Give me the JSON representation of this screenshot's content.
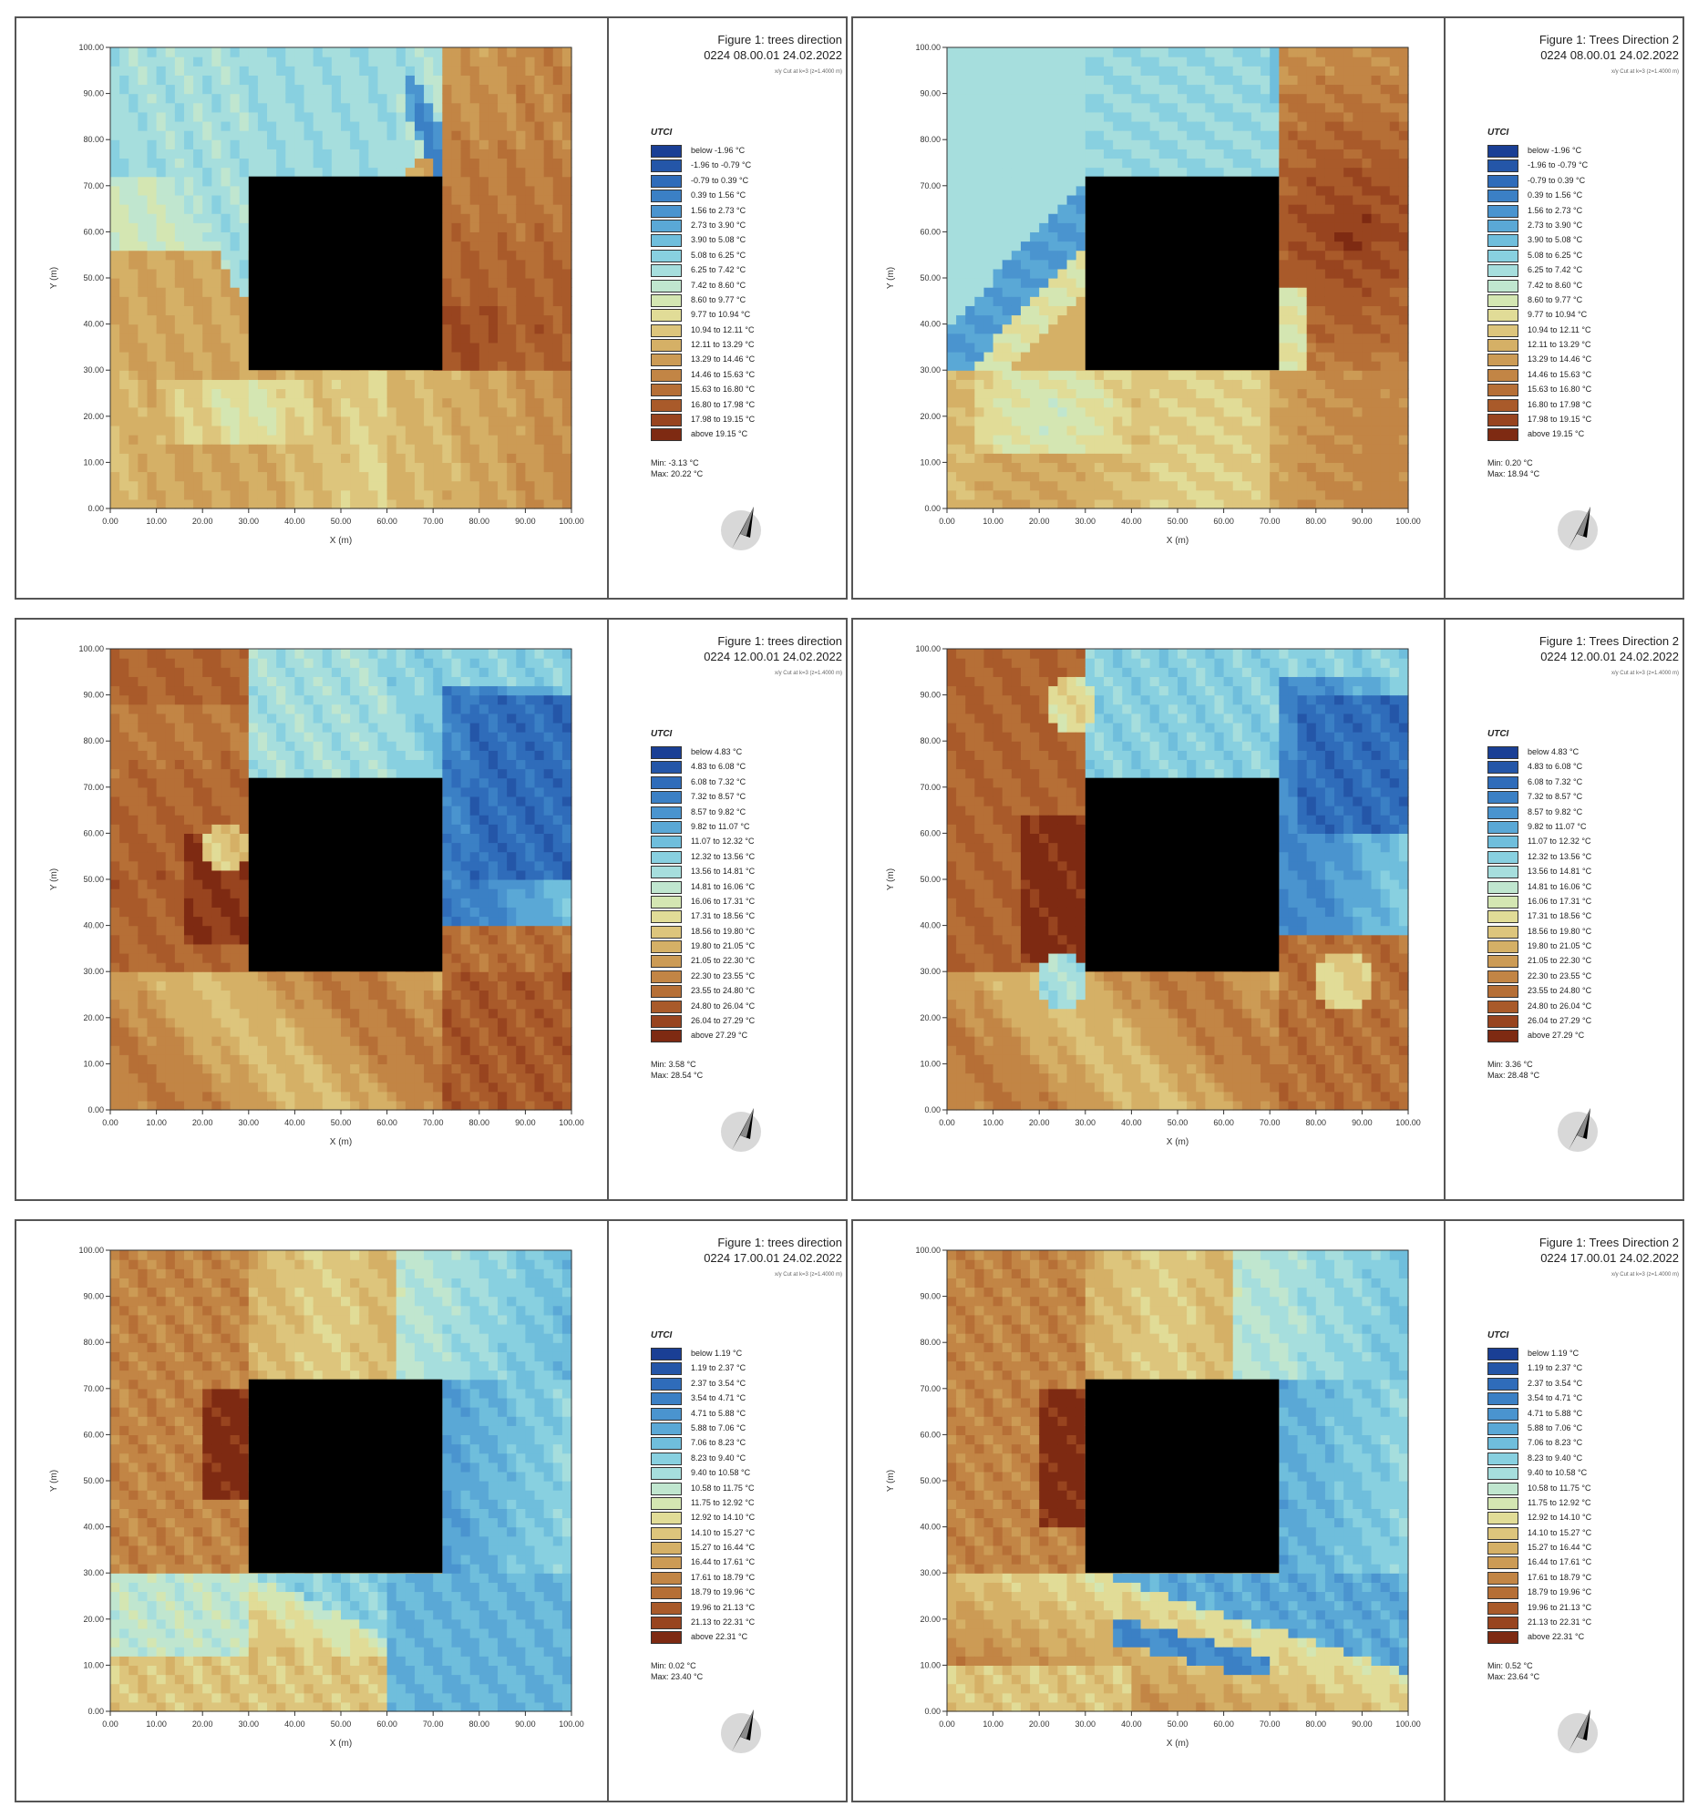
{
  "chart_data": [
    {
      "type": "heatmap",
      "title": "Figure 1: trees direction",
      "subtitle": "0224 08.00.01 24.02.2022",
      "note": "x/y Cut at k=3 (z=1.4000 m)",
      "xlabel": "X (m)",
      "ylabel": "Y (m)",
      "xlim": [
        0,
        100
      ],
      "ylim": [
        0,
        100
      ],
      "xticks": [
        "0.00",
        "10.00",
        "20.00",
        "30.00",
        "40.00",
        "50.00",
        "60.00",
        "70.00",
        "80.00",
        "90.00",
        "100.00"
      ],
      "yticks": [
        "0.00",
        "10.00",
        "20.00",
        "30.00",
        "40.00",
        "50.00",
        "60.00",
        "70.00",
        "80.00",
        "90.00",
        "100.00"
      ],
      "variable": "UTCI",
      "legend": [
        "below -1.96 °C",
        "-1.96 to -0.79 °C",
        "-0.79 to 0.39 °C",
        "0.39 to 1.56 °C",
        "1.56 to 2.73 °C",
        "2.73 to 3.90 °C",
        "3.90 to 5.08 °C",
        "5.08 to 6.25 °C",
        "6.25 to 7.42 °C",
        "7.42 to 8.60 °C",
        "8.60 to 9.77 °C",
        "9.77 to 10.94 °C",
        "10.94 to 12.11 °C",
        "12.11 to 13.29 °C",
        "13.29 to 14.46 °C",
        "14.46 to 15.63 °C",
        "15.63 to 16.80 °C",
        "16.80 to 17.98 °C",
        "17.98 to 19.15 °C",
        "above 19.15 °C"
      ],
      "min_label": "Min: -3.13 °C",
      "max_label": "Max: 20.22 °C",
      "building": {
        "x": [
          30,
          72
        ],
        "y": [
          30,
          72
        ]
      },
      "pattern": "p1"
    },
    {
      "type": "heatmap",
      "title": "Figure 1: Trees Direction 2",
      "subtitle": "0224 08.00.01 24.02.2022",
      "note": "x/y Cut at k=3 (z=1.4000 m)",
      "xlabel": "X (m)",
      "ylabel": "Y (m)",
      "xlim": [
        0,
        100
      ],
      "ylim": [
        0,
        100
      ],
      "xticks": [
        "0.00",
        "10.00",
        "20.00",
        "30.00",
        "40.00",
        "50.00",
        "60.00",
        "70.00",
        "80.00",
        "90.00",
        "100.00"
      ],
      "yticks": [
        "0.00",
        "10.00",
        "20.00",
        "30.00",
        "40.00",
        "50.00",
        "60.00",
        "70.00",
        "80.00",
        "90.00",
        "100.00"
      ],
      "variable": "UTCI",
      "legend": [
        "below -1.96 °C",
        "-1.96 to -0.79 °C",
        "-0.79 to 0.39 °C",
        "0.39 to 1.56 °C",
        "1.56 to 2.73 °C",
        "2.73 to 3.90 °C",
        "3.90 to 5.08 °C",
        "5.08 to 6.25 °C",
        "6.25 to 7.42 °C",
        "7.42 to 8.60 °C",
        "8.60 to 9.77 °C",
        "9.77 to 10.94 °C",
        "10.94 to 12.11 °C",
        "12.11 to 13.29 °C",
        "13.29 to 14.46 °C",
        "14.46 to 15.63 °C",
        "15.63 to 16.80 °C",
        "16.80 to 17.98 °C",
        "17.98 to 19.15 °C",
        "above 19.15 °C"
      ],
      "min_label": "Min: 0.20 °C",
      "max_label": "Max: 18.94 °C",
      "building": {
        "x": [
          30,
          72
        ],
        "y": [
          30,
          72
        ]
      },
      "pattern": "p2"
    },
    {
      "type": "heatmap",
      "title": "Figure 1: trees direction",
      "subtitle": "0224 12.00.01 24.02.2022",
      "note": "x/y Cut at k=3 (z=1.4000 m)",
      "xlabel": "X (m)",
      "ylabel": "Y (m)",
      "xlim": [
        0,
        100
      ],
      "ylim": [
        0,
        100
      ],
      "xticks": [
        "0.00",
        "10.00",
        "20.00",
        "30.00",
        "40.00",
        "50.00",
        "60.00",
        "70.00",
        "80.00",
        "90.00",
        "100.00"
      ],
      "yticks": [
        "0.00",
        "10.00",
        "20.00",
        "30.00",
        "40.00",
        "50.00",
        "60.00",
        "70.00",
        "80.00",
        "90.00",
        "100.00"
      ],
      "variable": "UTCI",
      "legend": [
        "below 4.83 °C",
        "4.83 to 6.08 °C",
        "6.08 to 7.32 °C",
        "7.32 to 8.57 °C",
        "8.57 to 9.82 °C",
        "9.82 to 11.07 °C",
        "11.07 to 12.32 °C",
        "12.32 to 13.56 °C",
        "13.56 to 14.81 °C",
        "14.81 to 16.06 °C",
        "16.06 to 17.31 °C",
        "17.31 to 18.56 °C",
        "18.56 to 19.80 °C",
        "19.80 to 21.05 °C",
        "21.05 to 22.30 °C",
        "22.30 to 23.55 °C",
        "23.55 to 24.80 °C",
        "24.80 to 26.04 °C",
        "26.04 to 27.29 °C",
        "above 27.29 °C"
      ],
      "min_label": "Min: 3.58 °C",
      "max_label": "Max: 28.54 °C",
      "building": {
        "x": [
          30,
          72
        ],
        "y": [
          30,
          72
        ]
      },
      "pattern": "p3"
    },
    {
      "type": "heatmap",
      "title": "Figure 1: Trees Direction 2",
      "subtitle": "0224 12.00.01 24.02.2022",
      "note": "x/y Cut at k=3 (z=1.4000 m)",
      "xlabel": "X (m)",
      "ylabel": "Y (m)",
      "xlim": [
        0,
        100
      ],
      "ylim": [
        0,
        100
      ],
      "xticks": [
        "0.00",
        "10.00",
        "20.00",
        "30.00",
        "40.00",
        "50.00",
        "60.00",
        "70.00",
        "80.00",
        "90.00",
        "100.00"
      ],
      "yticks": [
        "0.00",
        "10.00",
        "20.00",
        "30.00",
        "40.00",
        "50.00",
        "60.00",
        "70.00",
        "80.00",
        "90.00",
        "100.00"
      ],
      "variable": "UTCI",
      "legend": [
        "below 4.83 °C",
        "4.83 to 6.08 °C",
        "6.08 to 7.32 °C",
        "7.32 to 8.57 °C",
        "8.57 to 9.82 °C",
        "9.82 to 11.07 °C",
        "11.07 to 12.32 °C",
        "12.32 to 13.56 °C",
        "13.56 to 14.81 °C",
        "14.81 to 16.06 °C",
        "16.06 to 17.31 °C",
        "17.31 to 18.56 °C",
        "18.56 to 19.80 °C",
        "19.80 to 21.05 °C",
        "21.05 to 22.30 °C",
        "22.30 to 23.55 °C",
        "23.55 to 24.80 °C",
        "24.80 to 26.04 °C",
        "26.04 to 27.29 °C",
        "above 27.29 °C"
      ],
      "min_label": "Min: 3.36 °C",
      "max_label": "Max: 28.48 °C",
      "building": {
        "x": [
          30,
          72
        ],
        "y": [
          30,
          72
        ]
      },
      "pattern": "p4"
    },
    {
      "type": "heatmap",
      "title": "Figure 1: trees direction",
      "subtitle": "0224 17.00.01 24.02.2022",
      "note": "x/y Cut at k=3 (z=1.4000 m)",
      "xlabel": "X (m)",
      "ylabel": "Y (m)",
      "xlim": [
        0,
        100
      ],
      "ylim": [
        0,
        100
      ],
      "xticks": [
        "0.00",
        "10.00",
        "20.00",
        "30.00",
        "40.00",
        "50.00",
        "60.00",
        "70.00",
        "80.00",
        "90.00",
        "100.00"
      ],
      "yticks": [
        "0.00",
        "10.00",
        "20.00",
        "30.00",
        "40.00",
        "50.00",
        "60.00",
        "70.00",
        "80.00",
        "90.00",
        "100.00"
      ],
      "variable": "UTCI",
      "legend": [
        "below 1.19 °C",
        "1.19 to 2.37 °C",
        "2.37 to 3.54 °C",
        "3.54 to 4.71 °C",
        "4.71 to 5.88 °C",
        "5.88 to 7.06 °C",
        "7.06 to 8.23 °C",
        "8.23 to 9.40 °C",
        "9.40 to 10.58 °C",
        "10.58 to 11.75 °C",
        "11.75 to 12.92 °C",
        "12.92 to 14.10 °C",
        "14.10 to 15.27 °C",
        "15.27 to 16.44 °C",
        "16.44 to 17.61 °C",
        "17.61 to 18.79 °C",
        "18.79 to 19.96 °C",
        "19.96 to 21.13 °C",
        "21.13 to 22.31 °C",
        "above 22.31 °C"
      ],
      "min_label": "Min: 0.02 °C",
      "max_label": "Max: 23.40 °C",
      "building": {
        "x": [
          30,
          72
        ],
        "y": [
          30,
          72
        ]
      },
      "pattern": "p5"
    },
    {
      "type": "heatmap",
      "title": "Figure 1: Trees Direction 2",
      "subtitle": "0224 17.00.01 24.02.2022",
      "note": "x/y Cut at k=3 (z=1.4000 m)",
      "xlabel": "X (m)",
      "ylabel": "Y (m)",
      "xlim": [
        0,
        100
      ],
      "ylim": [
        0,
        100
      ],
      "xticks": [
        "0.00",
        "10.00",
        "20.00",
        "30.00",
        "40.00",
        "50.00",
        "60.00",
        "70.00",
        "80.00",
        "90.00",
        "100.00"
      ],
      "yticks": [
        "0.00",
        "10.00",
        "20.00",
        "30.00",
        "40.00",
        "50.00",
        "60.00",
        "70.00",
        "80.00",
        "90.00",
        "100.00"
      ],
      "variable": "UTCI",
      "legend": [
        "below 1.19 °C",
        "1.19 to 2.37 °C",
        "2.37 to 3.54 °C",
        "3.54 to 4.71 °C",
        "4.71 to 5.88 °C",
        "5.88 to 7.06 °C",
        "7.06 to 8.23 °C",
        "8.23 to 9.40 °C",
        "9.40 to 10.58 °C",
        "10.58 to 11.75 °C",
        "11.75 to 12.92 °C",
        "12.92 to 14.10 °C",
        "14.10 to 15.27 °C",
        "15.27 to 16.44 °C",
        "16.44 to 17.61 °C",
        "17.61 to 18.79 °C",
        "18.79 to 19.96 °C",
        "19.96 to 21.13 °C",
        "21.13 to 22.31 °C",
        "above 22.31 °C"
      ],
      "min_label": "Min: 0.52 °C",
      "max_label": "Max: 23.64 °C",
      "building": {
        "x": [
          30,
          72
        ],
        "y": [
          30,
          72
        ]
      },
      "pattern": "p6"
    }
  ],
  "palette": [
    "#1a3f95",
    "#2456a8",
    "#2f6cba",
    "#3b80c5",
    "#4a94cf",
    "#5aa8d6",
    "#6fbedc",
    "#88d0e0",
    "#a6dedd",
    "#c0e6cf",
    "#d4e6b2",
    "#e1dc97",
    "#ddc57c",
    "#d5b066",
    "#cc9b55",
    "#c28545",
    "#b66f36",
    "#a95a2a",
    "#98441f",
    "#7e2a12"
  ],
  "building_color": "#000000",
  "compass_icon": "north-arrow-icon"
}
